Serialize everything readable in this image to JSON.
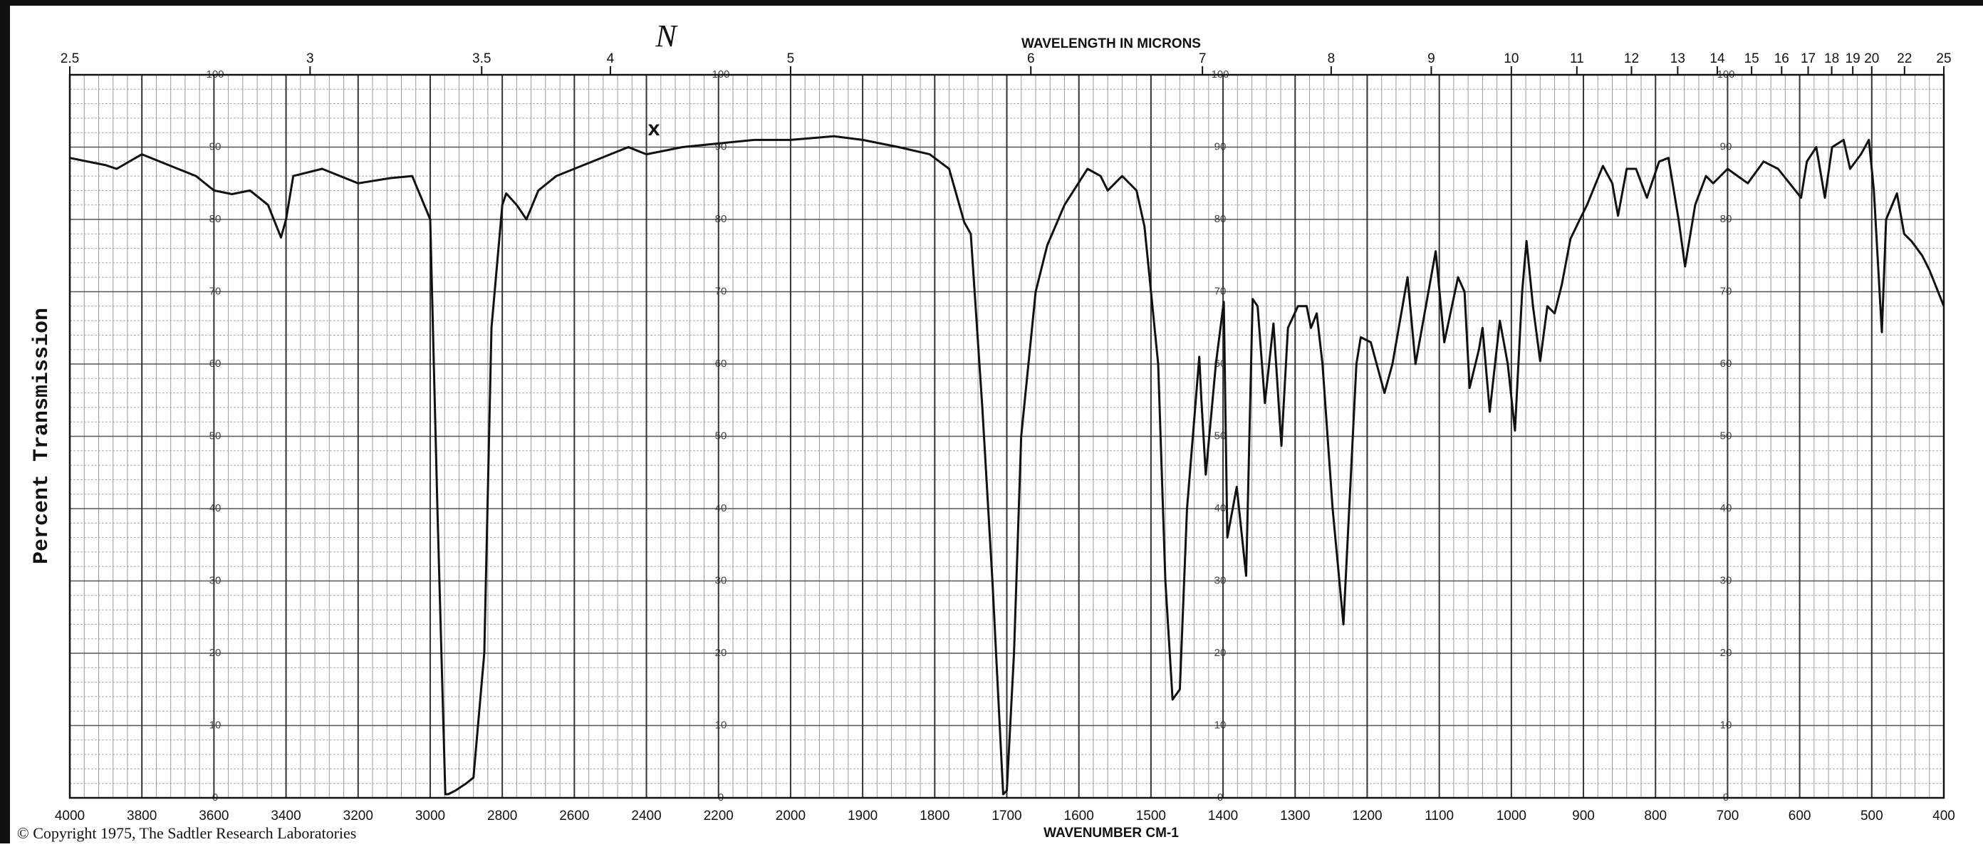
{
  "chart_data": {
    "type": "line",
    "x_title": "WAVENUMBER CM-1",
    "x2_title": "WAVELENGTH IN MICRONS",
    "y_title": "Percent Transmission",
    "footer": "© Copyright 1975, The Sadtler Research Laboratories",
    "annotations": [
      "x",
      "N"
    ],
    "xlim": [
      4000,
      400
    ],
    "xbreak": 2000,
    "xbreak_factor": 2,
    "xticks": [
      4000,
      3800,
      3600,
      3400,
      3200,
      3000,
      2800,
      2600,
      2400,
      2200,
      2000,
      1900,
      1800,
      1700,
      1600,
      1500,
      1400,
      1300,
      1200,
      1100,
      1000,
      900,
      800,
      700,
      600,
      500,
      400
    ],
    "x2ticks": [
      2.5,
      3,
      3.5,
      4,
      5,
      6,
      7,
      8,
      9,
      10,
      11,
      12,
      13,
      14,
      15,
      16,
      17,
      18,
      19,
      20,
      22,
      25
    ],
    "ylim": [
      0,
      100
    ],
    "yticks": [
      0,
      10,
      20,
      30,
      40,
      50,
      60,
      70,
      80,
      90,
      100
    ],
    "grid": true,
    "color": "#111111",
    "x": [
      4000,
      3900,
      3870,
      3800,
      3700,
      3650,
      3600,
      3550,
      3500,
      3450,
      3414,
      3400,
      3380,
      3300,
      3200,
      3112,
      3050,
      3000,
      2980,
      2958,
      2950,
      2930,
      2900,
      2880,
      2850,
      2830,
      2800,
      2789,
      2760,
      2733,
      2700,
      2650,
      2500,
      2450,
      2400,
      2300,
      2200,
      2100,
      2000,
      1940,
      1900,
      1850,
      1807,
      1780,
      1759,
      1750,
      1734,
      1720,
      1705,
      1700,
      1690,
      1680,
      1660,
      1644,
      1620,
      1588,
      1570,
      1560,
      1540,
      1520,
      1509,
      1490,
      1480,
      1470,
      1460,
      1450,
      1433,
      1430,
      1424,
      1410,
      1399,
      1394,
      1381,
      1368,
      1359,
      1352,
      1342,
      1330,
      1319,
      1310,
      1296,
      1284,
      1278,
      1270,
      1262,
      1248,
      1233,
      1225,
      1215,
      1209,
      1195,
      1176,
      1165,
      1144,
      1133,
      1105,
      1093,
      1074,
      1065,
      1058,
      1045,
      1040,
      1030,
      1016,
      1005,
      995,
      985,
      979,
      970,
      960,
      950,
      940,
      930,
      918,
      905,
      895,
      873,
      860,
      852,
      840,
      827,
      812,
      795,
      782,
      768,
      759,
      745,
      730,
      720,
      700,
      672,
      650,
      630,
      598,
      590,
      577,
      565,
      555,
      539,
      530,
      515,
      504,
      497,
      486,
      480,
      465,
      455,
      445,
      430,
      420,
      400
    ],
    "values": [
      88.5,
      87.5,
      87,
      89,
      87,
      86,
      84,
      83.5,
      84,
      82,
      77.5,
      80,
      86,
      87,
      85,
      85.7,
      86,
      80,
      40,
      0.5,
      0.5,
      1,
      2,
      2.8,
      20,
      65,
      82,
      83.6,
      82,
      80,
      84,
      86,
      89,
      90,
      89,
      90,
      90.5,
      91,
      91,
      91.5,
      91,
      90,
      89,
      87,
      79.6,
      78,
      54,
      30,
      0.5,
      1,
      20,
      50,
      70,
      76.4,
      82,
      87,
      86,
      84,
      86,
      84,
      79,
      60,
      30,
      13.6,
      15,
      40,
      61,
      55,
      44.7,
      60,
      68.6,
      36,
      43,
      30.7,
      69,
      68,
      54.6,
      65.6,
      48.7,
      65,
      68,
      68,
      65,
      67,
      60,
      40,
      24,
      40,
      60,
      63.7,
      63,
      56,
      60,
      72,
      60,
      75.6,
      63,
      72,
      70,
      56.7,
      62,
      65,
      53.4,
      66,
      60,
      50.8,
      70,
      77,
      68,
      60.4,
      68,
      67,
      71,
      77.3,
      80,
      82,
      87.4,
      85,
      80.5,
      87,
      87,
      83,
      88,
      88.5,
      80,
      73.5,
      82,
      86,
      85,
      87,
      85,
      88,
      87,
      83,
      88,
      90,
      83,
      90,
      91,
      87,
      89,
      91,
      84,
      64.4,
      80,
      83.6,
      78,
      77,
      75,
      73,
      68
    ]
  }
}
